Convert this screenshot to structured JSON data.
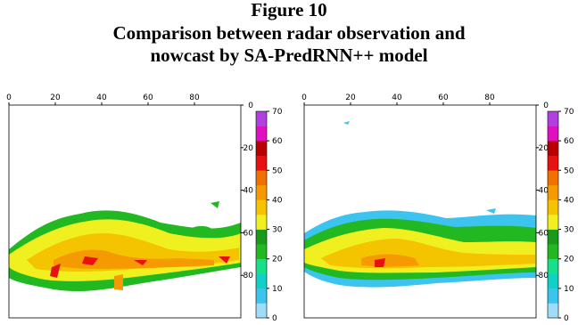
{
  "figure": {
    "label": "Figure 10",
    "caption_lines": [
      "Comparison between radar observation and",
      "nowcast by SA-PredRNN++ model"
    ]
  },
  "panels": [
    {
      "xticks": [
        0,
        20,
        40,
        60,
        80
      ],
      "yticks": [
        0,
        20,
        40,
        60,
        80
      ],
      "colorbar_ticks": [
        0,
        10,
        20,
        30,
        40,
        50,
        60,
        70
      ]
    },
    {
      "xticks": [
        0,
        20,
        40,
        60,
        80
      ],
      "yticks": [
        0,
        20,
        40,
        60,
        80
      ],
      "colorbar_ticks": [
        0,
        10,
        20,
        30,
        40,
        50,
        60,
        70
      ]
    }
  ],
  "colorbar_colors": [
    "#9fdcf5",
    "#3cc4ee",
    "#10d0c8",
    "#18e08a",
    "#22b822",
    "#1a9a1a",
    "#f0f020",
    "#f5c400",
    "#f59a00",
    "#f07000",
    "#e81010",
    "#b80000",
    "#e010c0",
    "#b040e0"
  ]
}
